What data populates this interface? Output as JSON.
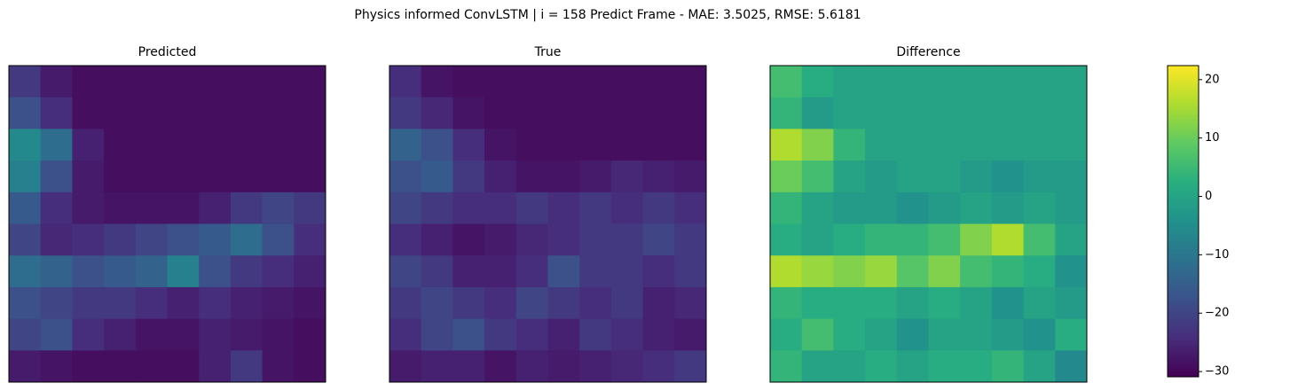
{
  "chart_data": {
    "type": "heatmap",
    "title": "Physics informed ConvLSTM | i = 158 Predict Frame - MAE: 3.5025, RMSE: 5.6181",
    "colormap": "viridis",
    "clim": [
      -30.9,
      22.4
    ],
    "cticks": [
      {
        "value": -30,
        "label": "−30"
      },
      {
        "value": -20,
        "label": "−20"
      },
      {
        "value": -10,
        "label": "−10"
      },
      0,
      10,
      20
    ],
    "panels": [
      {
        "title": "Predicted",
        "values": [
          [
            -22,
            -27,
            -29,
            -29,
            -29,
            -29,
            -29,
            -29,
            -29,
            -29
          ],
          [
            -18,
            -24,
            -29,
            -29,
            -29,
            -29,
            -29,
            -29,
            -29,
            -29
          ],
          [
            -6,
            -12,
            -26,
            -29,
            -29,
            -29,
            -29,
            -29,
            -29,
            -29
          ],
          [
            -8,
            -18,
            -27,
            -29,
            -29,
            -29,
            -29,
            -29,
            -29,
            -29
          ],
          [
            -16,
            -24,
            -27,
            -28,
            -28,
            -28,
            -26,
            -22,
            -20,
            -22
          ],
          [
            -20,
            -25,
            -24,
            -22,
            -20,
            -18,
            -16,
            -12,
            -18,
            -24
          ],
          [
            -12,
            -14,
            -18,
            -16,
            -14,
            -8,
            -18,
            -22,
            -24,
            -26
          ],
          [
            -18,
            -20,
            -22,
            -22,
            -24,
            -26,
            -24,
            -26,
            -27,
            -28
          ],
          [
            -20,
            -18,
            -24,
            -26,
            -28,
            -28,
            -26,
            -27,
            -28,
            -29
          ],
          [
            -27,
            -28,
            -29,
            -29,
            -29,
            -29,
            -26,
            -22,
            -28,
            -29
          ]
        ]
      },
      {
        "title": "True",
        "values": [
          [
            -24,
            -28,
            -29,
            -29,
            -29,
            -29,
            -29,
            -29,
            -29,
            -29
          ],
          [
            -22,
            -25,
            -28,
            -29,
            -29,
            -29,
            -29,
            -29,
            -29,
            -29
          ],
          [
            -14,
            -18,
            -24,
            -28,
            -29,
            -29,
            -29,
            -29,
            -29,
            -29
          ],
          [
            -18,
            -16,
            -22,
            -26,
            -28,
            -28,
            -27,
            -25,
            -26,
            -27
          ],
          [
            -20,
            -22,
            -24,
            -24,
            -22,
            -24,
            -22,
            -24,
            -22,
            -24
          ],
          [
            -24,
            -26,
            -28,
            -27,
            -25,
            -24,
            -22,
            -22,
            -20,
            -22
          ],
          [
            -20,
            -22,
            -26,
            -26,
            -24,
            -18,
            -22,
            -22,
            -24,
            -22
          ],
          [
            -22,
            -20,
            -22,
            -24,
            -20,
            -22,
            -24,
            -22,
            -26,
            -25
          ],
          [
            -24,
            -20,
            -18,
            -22,
            -24,
            -26,
            -22,
            -24,
            -26,
            -27
          ],
          [
            -27,
            -26,
            -26,
            -28,
            -26,
            -27,
            -26,
            -25,
            -24,
            -22
          ]
        ]
      },
      {
        "title": "Difference",
        "values": [
          [
            6,
            2,
            0,
            0,
            0,
            0,
            0,
            0,
            0,
            0
          ],
          [
            4,
            -2,
            0,
            0,
            0,
            0,
            0,
            0,
            0,
            0
          ],
          [
            16,
            12,
            4,
            0,
            0,
            0,
            0,
            0,
            0,
            0
          ],
          [
            10,
            6,
            0,
            -2,
            0,
            0,
            -2,
            -4,
            -2,
            -2
          ],
          [
            4,
            0,
            -2,
            -2,
            -4,
            -2,
            0,
            -2,
            0,
            -2
          ],
          [
            2,
            0,
            2,
            4,
            4,
            6,
            12,
            16,
            6,
            0
          ],
          [
            16,
            14,
            12,
            14,
            8,
            12,
            6,
            4,
            2,
            -4
          ],
          [
            4,
            2,
            2,
            2,
            0,
            2,
            0,
            -4,
            0,
            -2
          ],
          [
            2,
            6,
            2,
            0,
            -4,
            0,
            0,
            -2,
            -4,
            2
          ],
          [
            4,
            0,
            0,
            2,
            0,
            2,
            2,
            4,
            0,
            -6
          ]
        ]
      }
    ]
  }
}
